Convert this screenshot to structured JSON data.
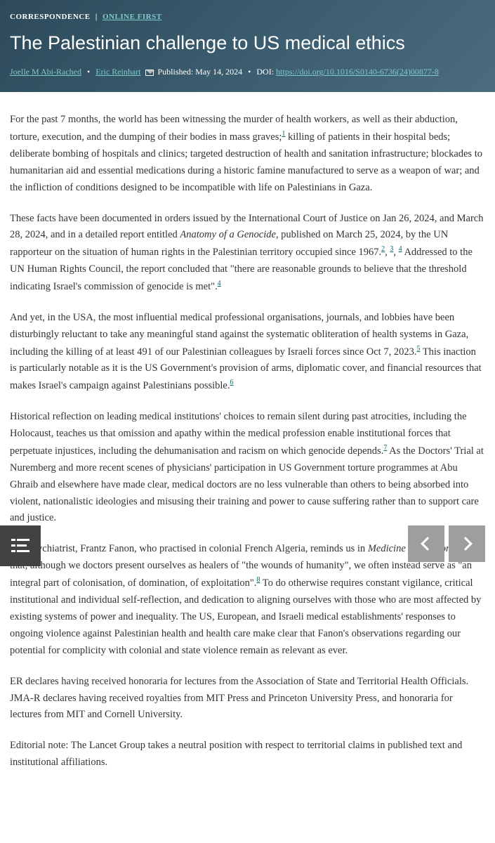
{
  "header": {
    "category": "CORRESPONDENCE",
    "online_first": "ONLINE FIRST",
    "title": "The Palestinian challenge to US medical ethics",
    "author1": "Joelle M Abi-Rached",
    "author2": "Eric Reinhart",
    "published_label": "Published:",
    "published_date": "May 14, 2024",
    "doi_label": "DOI:",
    "doi_link": "https://doi.org/10.1016/S0140-6736(24)00877-8"
  },
  "body": {
    "p1a": "For the past 7 months, the world has been witnessing the murder of health workers, as well as their abduction, torture, execution, and the dumping of their bodies in mass graves;",
    "p1b": " killing of patients in their hospital beds; deliberate bombing of hospitals and clinics; targeted destruction of health and sanitation infrastructure; blockades to humanitarian aid and essential medications during a historic famine manufactured to serve as a weapon of war; and the infliction of conditions designed to be incompatible with life on Palestinians in Gaza.",
    "p2a": "These facts have been documented in orders issued by the International Court of Justice on Jan 26, 2024, and March 28, 2024, and in a detailed report entitled ",
    "p2italic": "Anatomy of a Genocide",
    "p2b": ", published on March 25, 2024, by the UN rapporteur on the situation of human rights in the Palestinian territory occupied since 1967.",
    "p2c": " Addressed to the UN Human Rights Council, the report concluded that \"there are reasonable grounds to believe that the threshold indicating Israel's commission of genocide is met\".",
    "p3a": "And yet, in the USA, the most influential medical professional organisations, journals, and lobbies have been disturbingly reluctant to take any meaningful stand against the systematic obliteration of health systems in Gaza, including the killing of at least 491 of our Palestinian colleagues by Israeli forces since Oct 7, 2023.",
    "p3b": " This inaction is particularly notable as it is the US Government's provision of arms, diplomatic cover, and financial resources that makes Israel's campaign against Palestinians possible.",
    "p4a": "Historical reflection on leading medical institutions' choices to remain silent during past atrocities, including the Holocaust, teaches us that omission and apathy within the medical profession enable institutional forces that perpetuate injustices, including the dehumanisation and racism on which genocide depends.",
    "p4b": " As the Doctors' Trial at Nuremberg and more recent scenes of physicians' participation in US Government torture programmes at Abu Ghraib and elsewhere have made clear, medical doctors are no less vulnerable than others to being absorbed into violent, nationalistic ideologies and misusing their training and power to cause suffering rather than to support care and justice.",
    "p5a": "The psychiatrist, Frantz Fanon, who practised in colonial French Algeria, reminds us in ",
    "p5italic": "Medicine and Colonialism",
    "p5b": " that, although we doctors present ourselves as healers of \"the wounds of humanity\", we often instead serve as \"an integral part of colonisation, of domination, of exploitation\".",
    "p5c": " To do otherwise requires constant vigilance, critical institutional and individual self-reflection, and dedication to aligning ourselves with those who are most affected by existing systems of power and inequality. The US, European, and Israeli medical establishments' responses to ongoing violence against Palestinian health and health care make clear that Fanon's observations regarding our potential for complicity with colonial and state violence remain as relevant as ever.",
    "p6": "ER declares having received honoraria for lectures from the Association of State and Territorial Health Officials. JMA-R declares having received royalties from MIT Press and Princeton University Press, and honoraria for lectures from MIT and Cornell University.",
    "p7": "Editorial note: The Lancet Group takes a neutral position with respect to territorial claims in published text and institutional affiliations."
  },
  "refs": {
    "r1": "1",
    "r2": "2",
    "r3": "3",
    "r4": "4",
    "r4b": "4",
    "r5": "5",
    "r6": "6",
    "r7": "7",
    "r8": "8"
  },
  "colors": {
    "header_gradient_start": "#2d4a5a",
    "header_gradient_end": "#4a6c7e",
    "link_teal": "#7ec9c9",
    "ref_teal": "#00696c",
    "text": "#333333",
    "toc_bg": "#424242",
    "nav_bg": "#9e9e9e"
  }
}
